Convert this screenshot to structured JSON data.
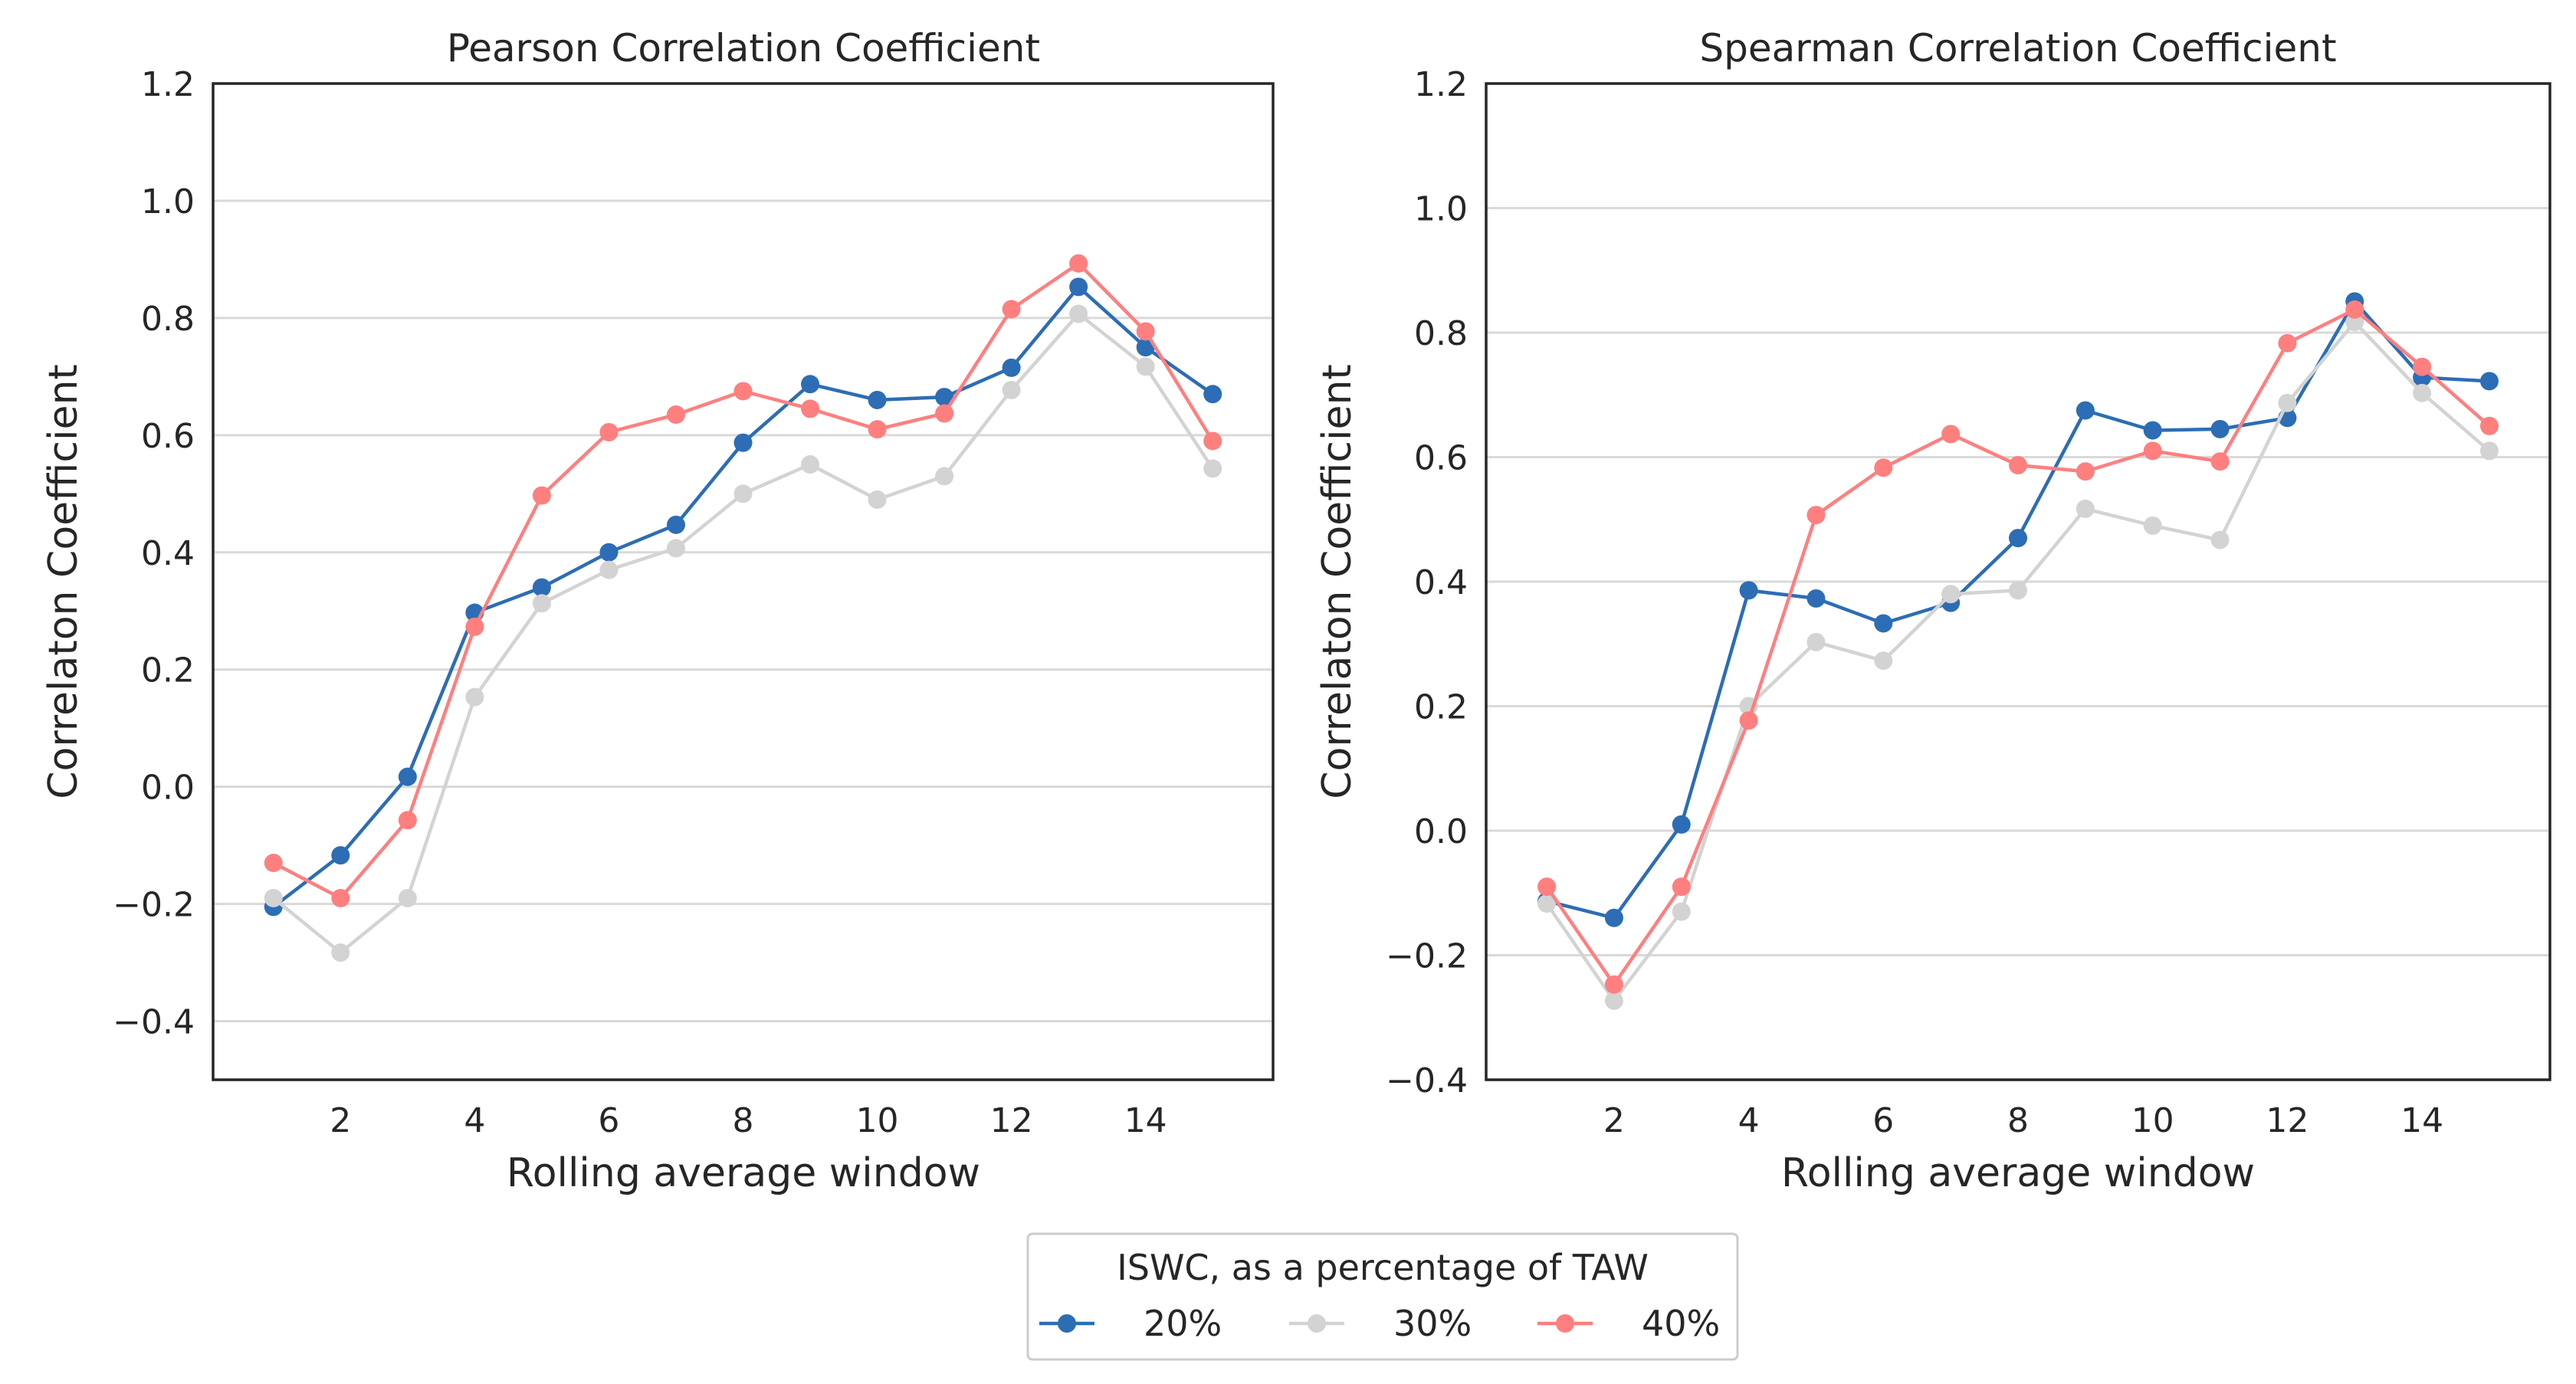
{
  "legend": {
    "title": "ISWC, as a percentage of TAW",
    "entries": [
      {
        "label": "20%",
        "color": "#2c6db5"
      },
      {
        "label": "30%",
        "color": "#d3d3d3"
      },
      {
        "label": "40%",
        "color": "#ff7f7f"
      }
    ]
  },
  "chart_data": [
    {
      "type": "line",
      "title": "Pearson Correlation Coefficient",
      "xlabel": "Rolling average window",
      "ylabel": "Correlaton Coefficient",
      "xlim": [
        0.1,
        15.9
      ],
      "ylim": [
        -0.5,
        1.2
      ],
      "xticks": [
        2,
        4,
        6,
        8,
        10,
        12,
        14
      ],
      "yticks": [
        -0.4,
        -0.2,
        0.0,
        0.2,
        0.4,
        0.6,
        0.8,
        1.0,
        1.2
      ],
      "ytick_labels": [
        "−0.4",
        "−0.2",
        "0.0",
        "0.2",
        "0.4",
        "0.6",
        "0.8",
        "1.0",
        "1.2"
      ],
      "grid": "horizontal",
      "x": [
        1,
        2,
        3,
        4,
        5,
        6,
        7,
        8,
        9,
        10,
        11,
        12,
        13,
        14,
        15
      ],
      "series": [
        {
          "name": "20%",
          "color": "#2c6db5",
          "values": [
            -0.205,
            -0.117,
            0.017,
            0.297,
            0.34,
            0.4,
            0.447,
            0.587,
            0.687,
            0.66,
            0.665,
            0.715,
            0.853,
            0.75,
            0.67
          ]
        },
        {
          "name": "30%",
          "color": "#d3d3d3",
          "values": [
            -0.19,
            -0.283,
            -0.19,
            0.153,
            0.313,
            0.37,
            0.407,
            0.5,
            0.55,
            0.49,
            0.53,
            0.677,
            0.807,
            0.717,
            0.543
          ]
        },
        {
          "name": "40%",
          "color": "#ff7f7f",
          "values": [
            -0.13,
            -0.19,
            -0.057,
            0.273,
            0.497,
            0.605,
            0.635,
            0.675,
            0.645,
            0.61,
            0.637,
            0.815,
            0.893,
            0.777,
            0.59
          ]
        }
      ]
    },
    {
      "type": "line",
      "title": "Spearman Correlation Coefficient",
      "xlabel": "Rolling average window",
      "ylabel": "Correlaton Coefficient",
      "xlim": [
        0.1,
        15.9
      ],
      "ylim": [
        -0.4,
        1.2
      ],
      "xticks": [
        2,
        4,
        6,
        8,
        10,
        12,
        14
      ],
      "yticks": [
        -0.4,
        -0.2,
        0.0,
        0.2,
        0.4,
        0.6,
        0.8,
        1.0,
        1.2
      ],
      "ytick_labels": [
        "−0.4",
        "−0.2",
        "0.0",
        "0.2",
        "0.4",
        "0.6",
        "0.8",
        "1.0",
        "1.2"
      ],
      "grid": "horizontal",
      "x": [
        1,
        2,
        3,
        4,
        5,
        6,
        7,
        8,
        9,
        10,
        11,
        12,
        13,
        14,
        15
      ],
      "series": [
        {
          "name": "20%",
          "color": "#2c6db5",
          "values": [
            -0.113,
            -0.14,
            0.01,
            0.386,
            0.373,
            0.333,
            0.366,
            0.47,
            0.675,
            0.643,
            0.645,
            0.663,
            0.85,
            0.728,
            0.722
          ]
        },
        {
          "name": "30%",
          "color": "#d3d3d3",
          "values": [
            -0.117,
            -0.273,
            -0.13,
            0.2,
            0.303,
            0.273,
            0.38,
            0.386,
            0.517,
            0.49,
            0.467,
            0.687,
            0.817,
            0.703,
            0.61
          ]
        },
        {
          "name": "40%",
          "color": "#ff7f7f",
          "values": [
            -0.09,
            -0.247,
            -0.09,
            0.177,
            0.507,
            0.583,
            0.637,
            0.587,
            0.577,
            0.61,
            0.593,
            0.783,
            0.837,
            0.745,
            0.65
          ]
        }
      ]
    }
  ]
}
